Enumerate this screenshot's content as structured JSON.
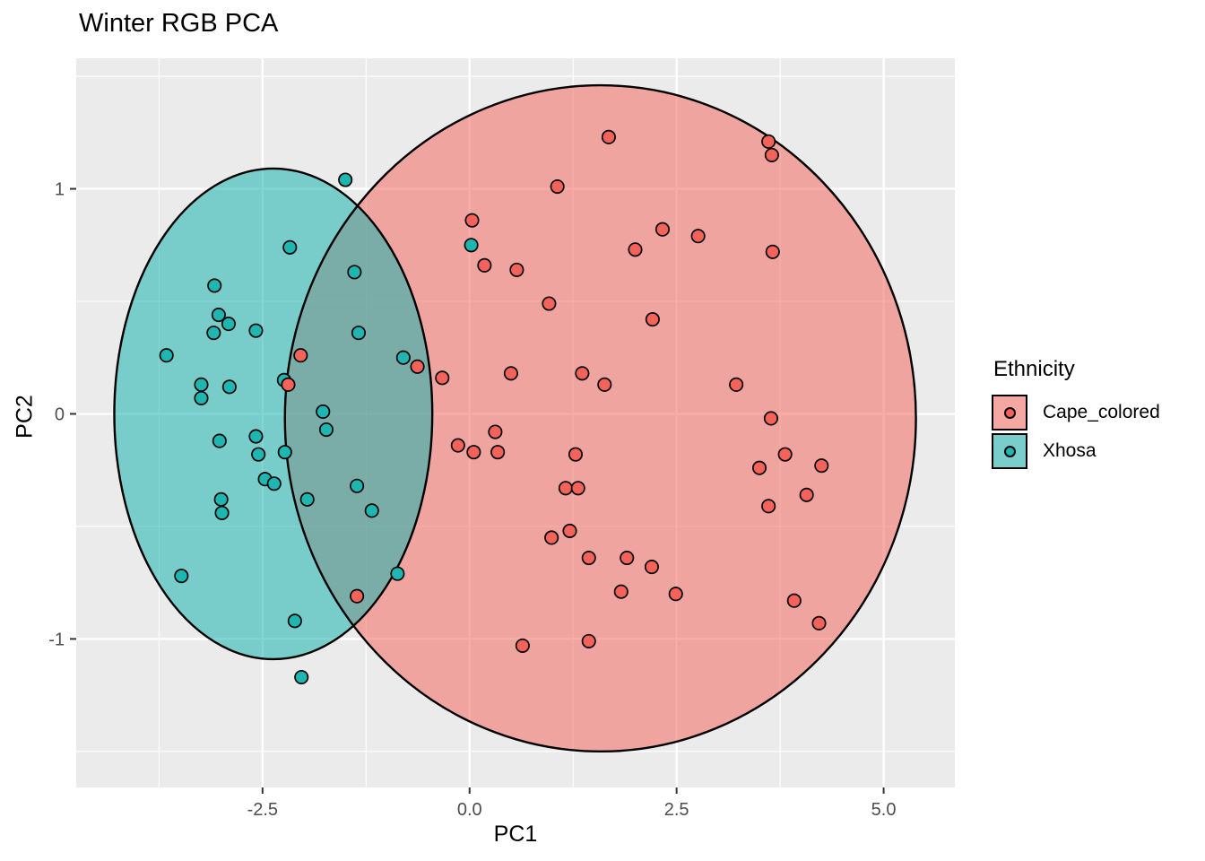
{
  "title": "Winter RGB PCA",
  "axes": {
    "x_label": "PC1",
    "y_label": "PC2"
  },
  "legend": {
    "title": "Ethnicity",
    "position": "right",
    "items": [
      {
        "label": "Cape_colored",
        "point_color": "#F4635A",
        "key_fill": "#F5A7A1"
      },
      {
        "label": "Xhosa",
        "point_color": "#1FB5B1",
        "key_fill": "#79CDCB"
      }
    ]
  },
  "chart_data": {
    "type": "scatter",
    "title": "Winter RGB PCA",
    "xlabel": "PC1",
    "ylabel": "PC2",
    "xlim": [
      -4.75,
      5.86
    ],
    "ylim": [
      -1.66,
      1.58
    ],
    "xticks": [
      -2.5,
      0.0,
      2.5,
      5.0
    ],
    "xtick_labels": [
      "-2.5",
      "0.0",
      "2.5",
      "5.0"
    ],
    "yticks": [
      -1,
      0,
      1
    ],
    "ytick_labels": [
      "-1",
      "0",
      "1"
    ],
    "x_minor_ticks": [
      -3.75,
      -1.25,
      1.25,
      3.75
    ],
    "y_minor_ticks": [
      -1.5,
      -0.5,
      0.5,
      1.5
    ],
    "grid": true,
    "panel_bg": "#EBEBEB",
    "grid_color": "#FFFFFF",
    "tick_color": "#333333",
    "tick_label_color": "#4D4D4D",
    "legend_title": "Ethnicity",
    "series": [
      {
        "name": "Xhosa",
        "point_color": "#1FB5B1",
        "ellipse_fill": "rgba(26,178,175,0.55)",
        "ellipse": {
          "cx": -2.37,
          "cy": 0.0,
          "rx": 1.92,
          "ry": 1.09
        },
        "points": [
          [
            -1.5,
            1.04
          ],
          [
            -2.17,
            0.74
          ],
          [
            -1.39,
            0.63
          ],
          [
            -3.08,
            0.57
          ],
          [
            -3.03,
            0.44
          ],
          [
            -2.91,
            0.4
          ],
          [
            -3.09,
            0.36
          ],
          [
            -2.58,
            0.37
          ],
          [
            -1.34,
            0.36
          ],
          [
            -3.66,
            0.26
          ],
          [
            -0.8,
            0.25
          ],
          [
            -2.24,
            0.15
          ],
          [
            -3.24,
            0.13
          ],
          [
            -2.9,
            0.12
          ],
          [
            -3.24,
            0.07
          ],
          [
            0.02,
            0.75
          ],
          [
            -1.77,
            0.01
          ],
          [
            -1.73,
            -0.07
          ],
          [
            -2.55,
            -0.18
          ],
          [
            -2.23,
            -0.17
          ],
          [
            -2.47,
            -0.29
          ],
          [
            -2.36,
            -0.31
          ],
          [
            -1.96,
            -0.38
          ],
          [
            -1.36,
            -0.32
          ],
          [
            -1.18,
            -0.43
          ],
          [
            -3.0,
            -0.38
          ],
          [
            -2.99,
            -0.44
          ],
          [
            -3.02,
            -0.12
          ],
          [
            -2.58,
            -0.1
          ],
          [
            -3.48,
            -0.72
          ],
          [
            -0.87,
            -0.71
          ],
          [
            -2.11,
            -0.92
          ],
          [
            -2.03,
            -1.17
          ]
        ]
      },
      {
        "name": "Cape_colored",
        "point_color": "#F4635A",
        "ellipse_fill": "rgba(244,106,98,0.55)",
        "ellipse": {
          "cx": 1.58,
          "cy": -0.02,
          "rx": 3.81,
          "ry": 1.48
        },
        "points": [
          [
            -2.04,
            0.26
          ],
          [
            -2.19,
            0.13
          ],
          [
            1.68,
            1.23
          ],
          [
            1.06,
            1.01
          ],
          [
            0.03,
            0.86
          ],
          [
            0.18,
            0.66
          ],
          [
            0.57,
            0.64
          ],
          [
            0.96,
            0.49
          ],
          [
            2.33,
            0.82
          ],
          [
            2.0,
            0.73
          ],
          [
            2.21,
            0.42
          ],
          [
            3.61,
            1.21
          ],
          [
            3.65,
            1.15
          ],
          [
            2.76,
            0.79
          ],
          [
            3.66,
            0.72
          ],
          [
            -0.63,
            0.21
          ],
          [
            -0.33,
            0.16
          ],
          [
            0.5,
            0.18
          ],
          [
            1.36,
            0.18
          ],
          [
            1.63,
            0.13
          ],
          [
            3.22,
            0.13
          ],
          [
            3.64,
            -0.02
          ],
          [
            -0.14,
            -0.14
          ],
          [
            0.05,
            -0.17
          ],
          [
            0.34,
            -0.17
          ],
          [
            0.31,
            -0.08
          ],
          [
            1.28,
            -0.18
          ],
          [
            3.81,
            -0.18
          ],
          [
            3.5,
            -0.24
          ],
          [
            4.25,
            -0.23
          ],
          [
            4.07,
            -0.36
          ],
          [
            3.61,
            -0.41
          ],
          [
            1.16,
            -0.33
          ],
          [
            1.31,
            -0.33
          ],
          [
            0.99,
            -0.55
          ],
          [
            1.21,
            -0.52
          ],
          [
            1.44,
            -0.64
          ],
          [
            1.9,
            -0.64
          ],
          [
            2.2,
            -0.68
          ],
          [
            1.83,
            -0.79
          ],
          [
            2.49,
            -0.8
          ],
          [
            -1.36,
            -0.81
          ],
          [
            0.64,
            -1.03
          ],
          [
            1.44,
            -1.01
          ],
          [
            3.92,
            -0.83
          ],
          [
            4.22,
            -0.93
          ]
        ]
      }
    ]
  }
}
